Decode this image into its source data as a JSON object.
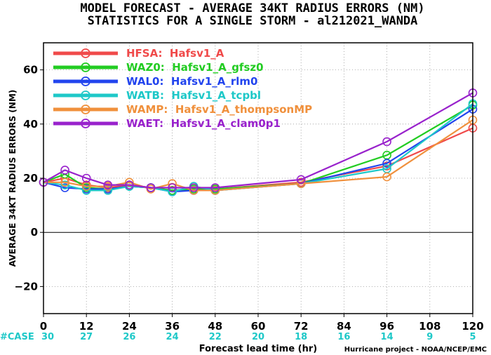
{
  "chart_data": {
    "type": "line",
    "title": "MODEL FORECAST - AVERAGE 34KT RADIUS ERRORS (NM)",
    "subtitle": "STATISTICS FOR A SINGLE STORM - al212021_WANDA",
    "xlabel": "Forecast lead time (hr)",
    "ylabel": "AVERAGE 34KT RADIUS ERRORS (NM)",
    "xlim": [
      0,
      120
    ],
    "ylim": [
      -30,
      70
    ],
    "xticks": [
      0,
      12,
      24,
      36,
      48,
      60,
      72,
      84,
      96,
      108,
      120
    ],
    "yticks": [
      -20,
      0,
      20,
      40,
      60
    ],
    "grid": true,
    "legend_position": "top-left",
    "cases_label": "#CASE",
    "cases": [
      30,
      27,
      26,
      24,
      22,
      20,
      18,
      16,
      14,
      9,
      5
    ],
    "credit": "Hurricane project - NOAA/NCEP/EMC",
    "series": [
      {
        "name": "HFSA:  Hafsv1_A",
        "color": "#f04a4a",
        "x": [
          0,
          6,
          12,
          18,
          24,
          30,
          36,
          42,
          48,
          72,
          96,
          120
        ],
        "y": [
          18.5,
          20.0,
          17.5,
          16.5,
          17.5,
          16.5,
          15.5,
          16.0,
          16.0,
          18.5,
          24.5,
          38.5
        ]
      },
      {
        "name": "WAZ0:  Hafsv1_A_gfsz0",
        "color": "#22cc22",
        "x": [
          0,
          6,
          12,
          18,
          24,
          30,
          36,
          42,
          48,
          72,
          96,
          120
        ],
        "y": [
          18.5,
          21.5,
          16.5,
          16.0,
          17.0,
          16.5,
          15.5,
          16.0,
          16.0,
          18.0,
          28.5,
          47.0
        ]
      },
      {
        "name": "WAL0:  Hafsv1_A_rlm0",
        "color": "#2244ee",
        "x": [
          0,
          6,
          12,
          18,
          24,
          30,
          36,
          42,
          48,
          72,
          96,
          120
        ],
        "y": [
          18.5,
          16.5,
          16.0,
          16.0,
          17.0,
          16.5,
          15.0,
          15.5,
          15.5,
          18.0,
          25.5,
          45.5
        ]
      },
      {
        "name": "WATB:  Hafsv1_A_tcpbl",
        "color": "#1ec8c8",
        "x": [
          0,
          6,
          12,
          18,
          24,
          30,
          36,
          42,
          48,
          72,
          96,
          120
        ],
        "y": [
          18.5,
          17.5,
          15.5,
          15.5,
          17.0,
          16.5,
          15.0,
          17.0,
          15.5,
          18.0,
          23.5,
          47.5
        ]
      },
      {
        "name": "WAMP:  Hafsv1_A_thompsonMP",
        "color": "#f0903c",
        "x": [
          0,
          6,
          12,
          18,
          24,
          30,
          36,
          42,
          48,
          72,
          96,
          120
        ],
        "y": [
          18.5,
          18.5,
          17.0,
          17.0,
          18.5,
          16.0,
          18.0,
          15.5,
          15.5,
          18.0,
          20.5,
          41.5
        ]
      },
      {
        "name": "WAET:  Hafsv1_A_clam0p1",
        "color": "#9922cc",
        "x": [
          0,
          6,
          12,
          18,
          24,
          30,
          36,
          42,
          48,
          72,
          96,
          120
        ],
        "y": [
          18.5,
          23.0,
          20.0,
          17.5,
          17.5,
          16.5,
          16.5,
          16.5,
          16.5,
          19.5,
          33.5,
          51.5
        ]
      }
    ]
  }
}
